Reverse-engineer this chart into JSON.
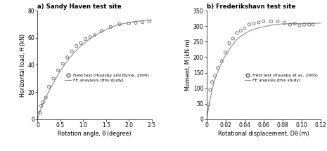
{
  "panel_a": {
    "title": "a) Sandy Haven test site",
    "xlabel": "Rotation angle, θ (degree)",
    "ylabel": "Horizontal load, H (kN)",
    "xlim": [
      0,
      2.5
    ],
    "ylim": [
      0,
      80
    ],
    "xticks": [
      0,
      0.5,
      1.0,
      1.5,
      2.0,
      2.5
    ],
    "yticks": [
      0,
      20,
      40,
      60,
      80
    ],
    "field_scatter_x": [
      0.05,
      0.08,
      0.12,
      0.18,
      0.25,
      0.35,
      0.45,
      0.55,
      0.65,
      0.75,
      0.85,
      0.95,
      1.05,
      1.15,
      1.25,
      1.4,
      1.6,
      1.8,
      2.0,
      2.15,
      2.3,
      2.45
    ],
    "field_scatter_y": [
      5.0,
      10.0,
      12.5,
      16.0,
      24.0,
      30.0,
      36.0,
      41.0,
      45.5,
      50.0,
      54.0,
      56.0,
      59.0,
      60.5,
      62.0,
      65.0,
      68.0,
      70.0,
      70.5,
      71.0,
      71.5,
      72.0
    ],
    "fe_x": [
      0.0,
      0.05,
      0.1,
      0.2,
      0.3,
      0.4,
      0.5,
      0.6,
      0.7,
      0.8,
      0.9,
      1.0,
      1.1,
      1.2,
      1.3,
      1.4,
      1.5,
      1.6,
      1.7,
      1.8,
      1.9,
      2.0,
      2.1,
      2.2,
      2.3,
      2.4,
      2.5
    ],
    "fe_y": [
      0.0,
      6.0,
      10.0,
      17.5,
      24.0,
      30.0,
      35.5,
      40.5,
      45.0,
      49.0,
      52.5,
      55.5,
      58.0,
      60.5,
      62.5,
      64.5,
      66.0,
      67.5,
      68.8,
      69.8,
      70.5,
      71.2,
      71.8,
      72.2,
      72.5,
      72.8,
      73.0
    ],
    "legend_scatter": "Field test (Houlsby and Byrne, 2000)",
    "legend_line": "FE anaylysis (this study)"
  },
  "panel_b": {
    "title": "b) Frederikshavn test site",
    "xlabel": "Rotational displacement, Dθ (m)",
    "ylabel": "Moment, M (kN.m)",
    "xlim": [
      0,
      0.12
    ],
    "ylim": [
      0,
      350
    ],
    "xticks": [
      0,
      0.02,
      0.04,
      0.06,
      0.08,
      0.1,
      0.12
    ],
    "yticks": [
      0,
      50,
      100,
      150,
      200,
      250,
      300,
      350
    ],
    "field_scatter_x": [
      0.002,
      0.004,
      0.006,
      0.009,
      0.012,
      0.016,
      0.02,
      0.024,
      0.028,
      0.032,
      0.036,
      0.04,
      0.045,
      0.05,
      0.055,
      0.06,
      0.068,
      0.075,
      0.082,
      0.088,
      0.093,
      0.098,
      0.103,
      0.108,
      0.112
    ],
    "field_scatter_y": [
      48.0,
      95.0,
      120.0,
      140.0,
      165.0,
      187.0,
      215.0,
      245.0,
      260.0,
      278.0,
      285.0,
      293.0,
      305.0,
      308.0,
      312.0,
      315.0,
      315.0,
      315.0,
      310.0,
      305.0,
      308.0,
      302.0,
      305.0,
      305.0,
      305.0
    ],
    "fe_x": [
      0.0,
      0.002,
      0.004,
      0.006,
      0.008,
      0.01,
      0.014,
      0.018,
      0.022,
      0.027,
      0.032,
      0.038,
      0.045,
      0.052,
      0.06,
      0.07,
      0.08,
      0.09,
      0.1,
      0.11,
      0.12
    ],
    "fe_y": [
      0.0,
      32.0,
      65.0,
      95.0,
      118.0,
      138.0,
      168.0,
      195.0,
      215.0,
      238.0,
      257.0,
      272.0,
      284.0,
      292.0,
      298.0,
      304.0,
      307.0,
      308.0,
      308.5,
      309.0,
      309.5
    ],
    "legend_scatter": "Field test (Houlsby et al., 2005)",
    "legend_line": "FE analysis (this study)"
  },
  "line_color": "#999999",
  "scatter_color": "none",
  "scatter_edge_color": "#555555"
}
